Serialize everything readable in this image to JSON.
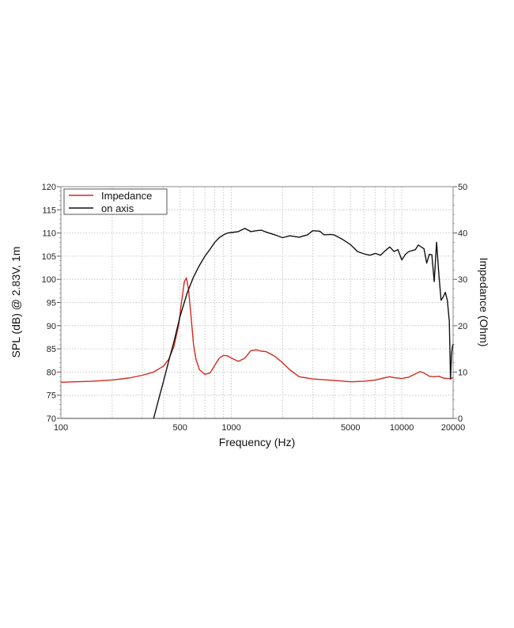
{
  "chart_data": {
    "type": "line",
    "title": "",
    "xlabel": "Frequency (Hz)",
    "ylabel": "SPL (dB) @ 2.83V, 1m",
    "y2label": "Impedance (Ohm)",
    "xscale": "log",
    "xlim": [
      100,
      20000
    ],
    "ylim": [
      70,
      120
    ],
    "y2lim": [
      0,
      50
    ],
    "grid": true,
    "legend_position": "upper left",
    "x_tick_labels": [
      "100",
      "500",
      "1000",
      "5000",
      "10000",
      "20000"
    ],
    "x_ticks": [
      100,
      500,
      1000,
      5000,
      10000,
      20000
    ],
    "x_minor_grid": [
      200,
      300,
      400,
      500,
      600,
      700,
      800,
      900,
      1000,
      2000,
      3000,
      4000,
      5000,
      6000,
      7000,
      8000,
      9000,
      10000
    ],
    "y_tick_labels": [
      "70",
      "75",
      "80",
      "85",
      "90",
      "95",
      "100",
      "105",
      "110",
      "115",
      "120"
    ],
    "y2_tick_labels": [
      "0",
      "10",
      "20",
      "30",
      "40",
      "50"
    ],
    "series": [
      {
        "name": "Impedance",
        "axis": "right",
        "color": "#d42a1e",
        "x": [
          100,
          150,
          200,
          250,
          300,
          350,
          400,
          430,
          460,
          490,
          510,
          530,
          545,
          560,
          580,
          600,
          620,
          650,
          700,
          750,
          800,
          850,
          900,
          950,
          1000,
          1100,
          1200,
          1300,
          1400,
          1500,
          1600,
          1800,
          2000,
          2200,
          2500,
          3000,
          4000,
          5000,
          6000,
          7000,
          8000,
          8500,
          9000,
          10000,
          11000,
          12000,
          12800,
          13500,
          14500,
          15500,
          16500,
          17500,
          18500,
          19500,
          20000
        ],
        "values": [
          7.8,
          8.0,
          8.3,
          8.7,
          9.3,
          10.0,
          11.3,
          12.8,
          15.5,
          20.0,
          25.0,
          29.5,
          30.3,
          28.0,
          22.0,
          16.0,
          12.8,
          10.5,
          9.5,
          9.8,
          11.5,
          13.0,
          13.6,
          13.5,
          13.0,
          12.3,
          13.0,
          14.6,
          14.8,
          14.5,
          14.4,
          13.4,
          12.0,
          10.5,
          9.0,
          8.5,
          8.2,
          7.9,
          8.0,
          8.3,
          8.8,
          9.0,
          8.8,
          8.6,
          8.9,
          9.6,
          10.1,
          9.8,
          9.1,
          9.0,
          9.1,
          8.7,
          8.6,
          8.6,
          8.8
        ]
      },
      {
        "name": "on axis",
        "axis": "left",
        "color": "#111111",
        "x": [
          350,
          380,
          400,
          430,
          460,
          500,
          550,
          600,
          650,
          700,
          750,
          800,
          850,
          900,
          950,
          1000,
          1100,
          1200,
          1300,
          1400,
          1500,
          1600,
          1800,
          2000,
          2200,
          2500,
          2800,
          3000,
          3300,
          3500,
          3800,
          4000,
          4500,
          5000,
          5500,
          6000,
          6500,
          7000,
          7500,
          8000,
          8500,
          9000,
          9500,
          10000,
          10500,
          11000,
          12000,
          12500,
          13000,
          13500,
          14000,
          14500,
          15000,
          15500,
          16000,
          16500,
          17000,
          17500,
          18000,
          18500,
          19000,
          19300,
          19600,
          19800,
          20000
        ],
        "values": [
          70.0,
          75.0,
          78.0,
          82.5,
          86.5,
          92.0,
          97.0,
          100.5,
          103.0,
          105.0,
          106.5,
          108.0,
          109.0,
          109.6,
          110.0,
          110.1,
          110.3,
          111.0,
          110.3,
          110.5,
          110.6,
          110.2,
          109.6,
          109.0,
          109.4,
          109.1,
          109.6,
          110.5,
          110.4,
          109.6,
          109.7,
          109.6,
          108.6,
          107.5,
          106.0,
          105.5,
          105.2,
          105.6,
          105.2,
          106.2,
          107.0,
          106.0,
          106.4,
          104.2,
          105.4,
          106.0,
          106.4,
          107.4,
          107.0,
          106.6,
          103.5,
          105.4,
          105.3,
          99.5,
          108.0,
          101.0,
          95.5,
          96.2,
          97.2,
          95.5,
          91.0,
          78.5,
          84.0,
          85.5,
          86.0
        ]
      }
    ]
  },
  "legend": {
    "items": [
      {
        "label": "Impedance",
        "color": "#d42a1e"
      },
      {
        "label": "on axis",
        "color": "#111111"
      }
    ]
  },
  "axes": {
    "xlabel": "Frequency (Hz)",
    "ylabel": "SPL (dB) @ 2.83V, 1m",
    "y2label": "Impedance (Ohm)"
  }
}
